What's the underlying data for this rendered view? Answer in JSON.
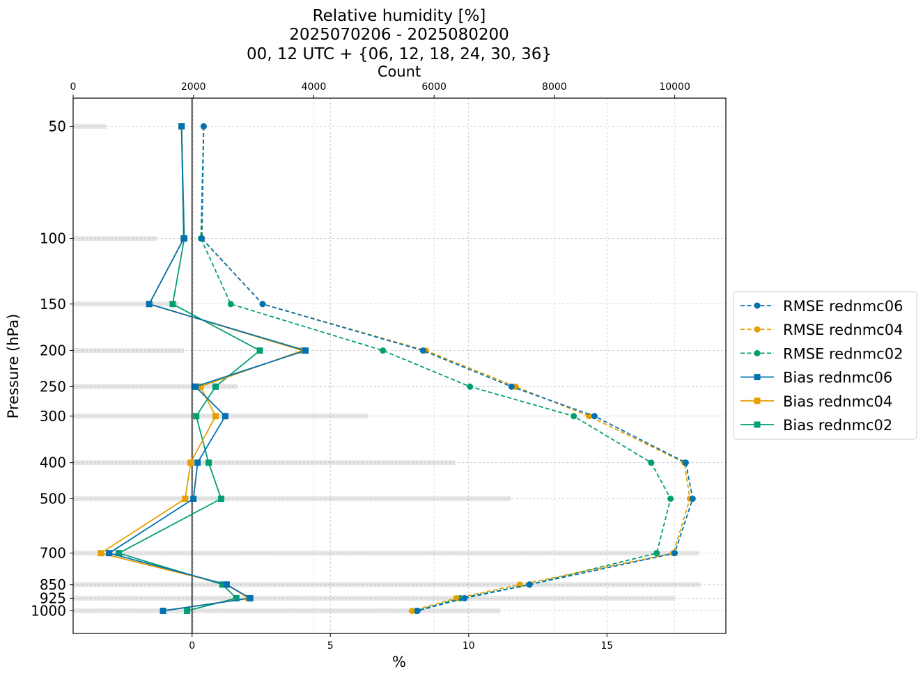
{
  "chart_data": {
    "type": "line",
    "title": [
      "Relative humidity [%]",
      "2025070206 - 2025080200",
      "00, 12 UTC + {06, 12, 18, 24, 30, 36}"
    ],
    "xlabel": "%",
    "ylabel": "Pressure (hPa)",
    "top_xlabel": "Count",
    "xlim": [
      -4.3,
      19.3
    ],
    "ylim_log_pressure": [
      1150,
      42
    ],
    "x_ticks": [
      0,
      5,
      10,
      15
    ],
    "top_xlim": [
      0,
      10850
    ],
    "top_x_ticks": [
      0,
      2000,
      4000,
      6000,
      8000,
      10000
    ],
    "y_ticks": [
      50,
      100,
      150,
      200,
      250,
      300,
      400,
      500,
      700,
      850,
      925,
      1000
    ],
    "grid": true,
    "legend_position": "right-outside",
    "pressure_levels": [
      50,
      100,
      150,
      200,
      250,
      300,
      400,
      500,
      700,
      850,
      925,
      1000
    ],
    "counts": [
      550,
      1400,
      1750,
      1850,
      2730,
      4900,
      6350,
      7280,
      10400,
      10430,
      10000,
      7100
    ],
    "series": [
      {
        "name": "RMSE rednmc06",
        "color": "#0072B2",
        "style": "dashed",
        "marker": "circle",
        "values": [
          0.42,
          0.35,
          2.55,
          8.35,
          11.55,
          14.55,
          17.85,
          18.1,
          17.45,
          12.2,
          9.85,
          8.15
        ]
      },
      {
        "name": "RMSE rednmc04",
        "color": "#E69F00",
        "style": "dashed",
        "marker": "circle",
        "values": [
          0.42,
          0.36,
          2.55,
          8.45,
          11.7,
          14.35,
          17.8,
          18.0,
          17.4,
          11.85,
          9.55,
          7.95
        ]
      },
      {
        "name": "RMSE rednmc02",
        "color": "#009E73",
        "style": "dashed",
        "marker": "circle",
        "values": [
          0.42,
          0.32,
          1.4,
          6.9,
          10.05,
          13.8,
          16.6,
          17.3,
          16.8,
          12.2,
          9.7,
          8.1
        ]
      },
      {
        "name": "Bias rednmc06",
        "color": "#0072B2",
        "style": "solid",
        "marker": "square",
        "values": [
          -0.38,
          -0.3,
          -1.55,
          4.1,
          0.12,
          1.2,
          0.2,
          0.05,
          -3.0,
          1.25,
          2.1,
          -1.05
        ]
      },
      {
        "name": "Bias rednmc04",
        "color": "#E69F00",
        "style": "solid",
        "marker": "square",
        "values": [
          -0.38,
          -0.3,
          -1.55,
          4.0,
          0.3,
          0.85,
          -0.05,
          -0.25,
          -3.3,
          1.25,
          2.05,
          -1.05
        ]
      },
      {
        "name": "Bias rednmc02",
        "color": "#009E73",
        "style": "solid",
        "marker": "square",
        "values": [
          -0.38,
          -0.28,
          -0.7,
          2.45,
          0.85,
          0.15,
          0.6,
          1.05,
          -2.65,
          1.1,
          1.6,
          -0.18
        ]
      }
    ]
  }
}
